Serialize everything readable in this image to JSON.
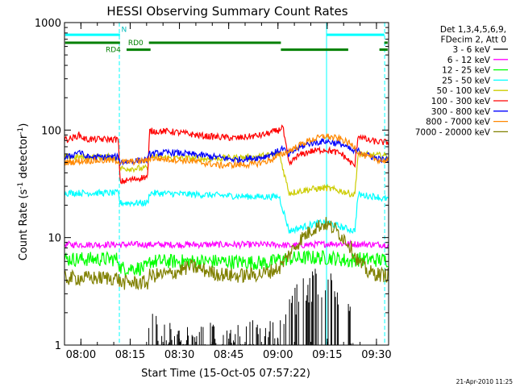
{
  "chart_data": {
    "type": "line",
    "title": "HESSI Observing Summary Count Rates",
    "xlabel": "Start Time (15-Oct-05 07:57:22)",
    "ylabel_main": "Count Rate (s",
    "ylabel_exp1": "-1",
    "ylabel_mid": " detector",
    "ylabel_exp2": "-1",
    "ylabel_end": ")",
    "yscale": "log",
    "ylim": [
      1,
      1000
    ],
    "xlim_min": [
      -2.4,
      96.3
    ],
    "x_ticks": [
      {
        "min": 2.6,
        "label": "08:00"
      },
      {
        "min": 17.6,
        "label": "08:15"
      },
      {
        "min": 32.6,
        "label": "08:30"
      },
      {
        "min": 47.6,
        "label": "08:45"
      },
      {
        "min": 62.6,
        "label": "09:00"
      },
      {
        "min": 77.6,
        "label": "09:15"
      },
      {
        "min": 92.6,
        "label": "09:30"
      }
    ],
    "y_ticks": [
      {
        "value": 1,
        "label": "1"
      },
      {
        "value": 10,
        "label": "10"
      },
      {
        "value": 100,
        "label": "100"
      },
      {
        "value": 1000,
        "label": "1000"
      }
    ],
    "legend": {
      "header_lines": [
        "Det 1,3,4,5,6,9,",
        "FDecim 2, Att 0"
      ],
      "placement": "right, outside plot"
    },
    "series": [
      {
        "name": "3 - 6 keV",
        "color": "#000000",
        "style": "spiky",
        "points": [
          [
            23,
            1.4
          ],
          [
            25,
            1.8
          ],
          [
            27,
            1.4
          ],
          [
            28,
            1.3
          ],
          [
            64,
            1.4
          ],
          [
            66,
            2.2
          ],
          [
            68,
            3
          ],
          [
            70,
            3.6
          ],
          [
            72,
            4.2
          ],
          [
            74,
            4.6
          ],
          [
            76,
            4.8
          ],
          [
            78,
            4.6
          ],
          [
            80,
            4.3
          ],
          [
            82,
            3.4
          ],
          [
            84,
            2.2
          ],
          [
            86,
            1.4
          ]
        ]
      },
      {
        "name": "6 - 12 keV",
        "color": "#ff00ff",
        "style": "noisy",
        "points": [
          [
            -2,
            8.6
          ],
          [
            20,
            8.6
          ],
          [
            40,
            8.6
          ],
          [
            63,
            8.6
          ],
          [
            66,
            8.4
          ],
          [
            80,
            8.8
          ],
          [
            94,
            8.6
          ]
        ]
      },
      {
        "name": "12 - 25 keV",
        "color": "#00ff00",
        "style": "noisy",
        "points": [
          [
            -2,
            6.3
          ],
          [
            14,
            6.3
          ],
          [
            14.5,
            5.2
          ],
          [
            23,
            5.2
          ],
          [
            23.5,
            6
          ],
          [
            45,
            6
          ],
          [
            60,
            5.8
          ],
          [
            63,
            6.3
          ],
          [
            72,
            6.5
          ],
          [
            79,
            6.5
          ],
          [
            85,
            6
          ],
          [
            86,
            6.3
          ],
          [
            94,
            6.2
          ]
        ]
      },
      {
        "name": "25 - 50 keV",
        "color": "#00ffff",
        "style": "noisy",
        "points": [
          [
            -2,
            26
          ],
          [
            14,
            26
          ],
          [
            14.5,
            21
          ],
          [
            23,
            21
          ],
          [
            23.5,
            26
          ],
          [
            40,
            25
          ],
          [
            55,
            24
          ],
          [
            63,
            24
          ],
          [
            66,
            11.5
          ],
          [
            72,
            13
          ],
          [
            77,
            14
          ],
          [
            82,
            12.5
          ],
          [
            86,
            11.5
          ],
          [
            87,
            25
          ],
          [
            93,
            24
          ],
          [
            94,
            23
          ]
        ]
      },
      {
        "name": "50 - 100 keV",
        "color": "#cccc00",
        "style": "noisy",
        "points": [
          [
            -2,
            56
          ],
          [
            14,
            56
          ],
          [
            14.5,
            44
          ],
          [
            23,
            44
          ],
          [
            23.5,
            56
          ],
          [
            40,
            54
          ],
          [
            55,
            56
          ],
          [
            63,
            60
          ],
          [
            66,
            26
          ],
          [
            72,
            28
          ],
          [
            77,
            29
          ],
          [
            82,
            27
          ],
          [
            86,
            25
          ],
          [
            87,
            60
          ],
          [
            93,
            58
          ],
          [
            94,
            58
          ]
        ]
      },
      {
        "name": "100 - 300 keV",
        "color": "#ff0000",
        "style": "noisy",
        "points": [
          [
            -2,
            82
          ],
          [
            0,
            84
          ],
          [
            2,
            90
          ],
          [
            4,
            82
          ],
          [
            14,
            82
          ],
          [
            14.5,
            33
          ],
          [
            23,
            37
          ],
          [
            23.5,
            98
          ],
          [
            30,
            97
          ],
          [
            40,
            88
          ],
          [
            50,
            84
          ],
          [
            58,
            90
          ],
          [
            63,
            100
          ],
          [
            64,
            110
          ],
          [
            66,
            47
          ],
          [
            68,
            56
          ],
          [
            72,
            63
          ],
          [
            77,
            66
          ],
          [
            82,
            60
          ],
          [
            86,
            46
          ],
          [
            87,
            90
          ],
          [
            90,
            80
          ],
          [
            94,
            77
          ]
        ]
      },
      {
        "name": "300 - 800 keV",
        "color": "#0000ff",
        "style": "noisy",
        "points": [
          [
            -2,
            55
          ],
          [
            0,
            58
          ],
          [
            2,
            64
          ],
          [
            4,
            56
          ],
          [
            14,
            56
          ],
          [
            14.5,
            50
          ],
          [
            23,
            53
          ],
          [
            23.5,
            60
          ],
          [
            30,
            62
          ],
          [
            40,
            58
          ],
          [
            50,
            53
          ],
          [
            58,
            56
          ],
          [
            63,
            64
          ],
          [
            64,
            68
          ],
          [
            66,
            58
          ],
          [
            68,
            66
          ],
          [
            72,
            75
          ],
          [
            77,
            79
          ],
          [
            82,
            74
          ],
          [
            86,
            62
          ],
          [
            87,
            64
          ],
          [
            90,
            58
          ],
          [
            94,
            53
          ]
        ]
      },
      {
        "name": "800 - 7000 keV",
        "color": "#ff8800",
        "style": "noisy",
        "points": [
          [
            -2,
            50
          ],
          [
            4,
            52
          ],
          [
            14,
            52
          ],
          [
            14.5,
            50
          ],
          [
            23,
            52
          ],
          [
            23.5,
            55
          ],
          [
            35,
            52
          ],
          [
            45,
            47
          ],
          [
            55,
            48
          ],
          [
            60,
            52
          ],
          [
            63,
            58
          ],
          [
            66,
            64
          ],
          [
            72,
            80
          ],
          [
            77,
            88
          ],
          [
            82,
            82
          ],
          [
            86,
            70
          ],
          [
            87,
            62
          ],
          [
            90,
            56
          ],
          [
            94,
            52
          ]
        ]
      },
      {
        "name": "7000 - 20000 keV",
        "color": "#808000",
        "style": "noisy",
        "points": [
          [
            -2,
            4.2
          ],
          [
            14,
            4.2
          ],
          [
            14.5,
            3.8
          ],
          [
            23,
            3.8
          ],
          [
            23.5,
            4.4
          ],
          [
            30,
            4.6
          ],
          [
            36,
            5.4
          ],
          [
            44,
            4.6
          ],
          [
            50,
            4.4
          ],
          [
            58,
            4.6
          ],
          [
            63,
            5.2
          ],
          [
            66,
            7
          ],
          [
            70,
            10
          ],
          [
            74,
            12.5
          ],
          [
            77,
            13.5
          ],
          [
            80,
            12
          ],
          [
            84,
            9
          ],
          [
            87,
            6
          ],
          [
            90,
            4.8
          ],
          [
            94,
            4.5
          ]
        ]
      }
    ],
    "vlines_cyan_solid_min": [
      -2.4,
      77.4
    ],
    "vlines_cyan_dashed_min": [
      14.3,
      95.1
    ],
    "flag_bars": {
      "cyan": {
        "segments": [
          [
            -2.2,
            14.5
          ],
          [
            77.5,
            95
          ]
        ],
        "value": 770
      },
      "green_rd0": {
        "label": "RD0",
        "segments": [
          [
            -2.2,
            14.5
          ],
          [
            23.3,
            63.5
          ],
          [
            95,
            96
          ]
        ],
        "value": 650
      },
      "green_rd4": {
        "label": "RD4",
        "segments": [
          [
            16.5,
            23.8
          ],
          [
            63.5,
            84
          ],
          [
            93.5,
            96
          ]
        ],
        "value": 560
      },
      "n_marker": {
        "label": "N",
        "min": 14.9,
        "value": 820
      }
    }
  },
  "footer_date": "21-Apr-2010 11:25"
}
